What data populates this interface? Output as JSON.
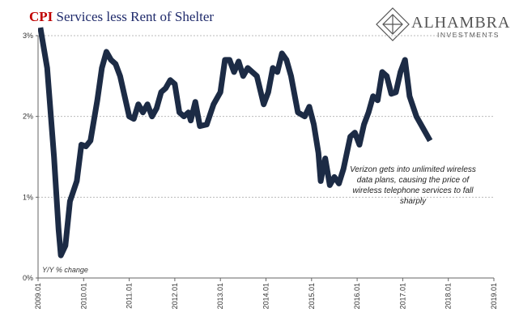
{
  "chart_data": {
    "type": "line",
    "title_parts": [
      "CPI",
      "Services less Rent of Shelter"
    ],
    "title_colors": [
      "#c00000",
      "#1f2a6b"
    ],
    "logo": {
      "name": "ALHAMBRA",
      "subtitle": "INVESTMENTS"
    },
    "y_axis_note": "Y/Y % change",
    "annotation": [
      "Verizon gets into unlimited wireless",
      "data plans, causing the price of",
      "wireless telephone services to fall",
      "sharply"
    ],
    "grid": true,
    "xlim": [
      2009,
      2019
    ],
    "xticks": [
      {
        "value": 2009,
        "label": "2009.01"
      },
      {
        "value": 2010,
        "label": "2010.01"
      },
      {
        "value": 2011,
        "label": "2011.01"
      },
      {
        "value": 2012,
        "label": "2012.01"
      },
      {
        "value": 2013,
        "label": "2013.01"
      },
      {
        "value": 2014,
        "label": "2014.01"
      },
      {
        "value": 2015,
        "label": "2015.01"
      },
      {
        "value": 2016,
        "label": "2016.01"
      },
      {
        "value": 2017,
        "label": "2017.01"
      },
      {
        "value": 2018,
        "label": "2018.01"
      },
      {
        "value": 2019,
        "label": "2019.01"
      }
    ],
    "ylim": [
      0,
      3
    ],
    "yticks": [
      {
        "value": 0,
        "label": "0%"
      },
      {
        "value": 1,
        "label": "1%"
      },
      {
        "value": 2,
        "label": "2%"
      },
      {
        "value": 3,
        "label": "3%"
      }
    ],
    "x": [
      2009.05,
      2009.2,
      2009.35,
      2009.45,
      2009.5,
      2009.6,
      2009.7,
      2009.85,
      2009.95,
      2010.05,
      2010.15,
      2010.3,
      2010.4,
      2010.5,
      2010.6,
      2010.7,
      2010.8,
      2010.9,
      2011.0,
      2011.1,
      2011.2,
      2011.3,
      2011.4,
      2011.5,
      2011.6,
      2011.7,
      2011.8,
      2011.9,
      2012.0,
      2012.1,
      2012.2,
      2012.3,
      2012.35,
      2012.45,
      2012.55,
      2012.7,
      2012.85,
      2013.0,
      2013.1,
      2013.2,
      2013.3,
      2013.4,
      2013.5,
      2013.6,
      2013.7,
      2013.8,
      2013.95,
      2014.05,
      2014.15,
      2014.25,
      2014.35,
      2014.45,
      2014.55,
      2014.7,
      2014.85,
      2014.95,
      2015.05,
      2015.15,
      2015.2,
      2015.3,
      2015.4,
      2015.5,
      2015.6,
      2015.7,
      2015.85,
      2015.95,
      2016.05,
      2016.15,
      2016.25,
      2016.35,
      2016.45,
      2016.55,
      2016.65,
      2016.75,
      2016.85,
      2016.95,
      2017.05,
      2017.15,
      2017.3,
      2017.45,
      2017.6
    ],
    "series": [
      {
        "name": "CPI Services less Rent of Shelter",
        "color": "#1c2b45",
        "values": [
          3.1,
          2.6,
          1.5,
          0.6,
          0.28,
          0.4,
          0.95,
          1.2,
          1.65,
          1.63,
          1.7,
          2.2,
          2.6,
          2.8,
          2.7,
          2.65,
          2.5,
          2.25,
          2.0,
          1.97,
          2.15,
          2.05,
          2.15,
          2.0,
          2.1,
          2.3,
          2.35,
          2.45,
          2.4,
          2.05,
          2.0,
          2.05,
          1.95,
          2.18,
          1.88,
          1.9,
          2.15,
          2.3,
          2.7,
          2.7,
          2.55,
          2.68,
          2.5,
          2.6,
          2.55,
          2.5,
          2.15,
          2.3,
          2.6,
          2.55,
          2.78,
          2.7,
          2.5,
          2.05,
          2.0,
          2.12,
          1.9,
          1.55,
          1.2,
          1.48,
          1.15,
          1.25,
          1.17,
          1.35,
          1.75,
          1.8,
          1.65,
          1.9,
          2.05,
          2.25,
          2.2,
          2.55,
          2.5,
          2.28,
          2.3,
          2.55,
          2.7,
          2.25,
          2.0,
          1.85,
          1.7
        ]
      }
    ]
  }
}
